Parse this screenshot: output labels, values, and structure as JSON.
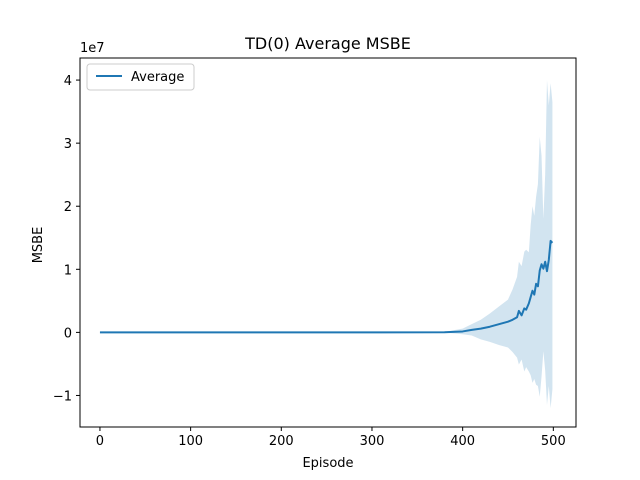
{
  "chart_data": {
    "type": "line",
    "title": "TD(0) Average MSBE",
    "xlabel": "Episode",
    "ylabel": "MSBE",
    "y_offset_text": "1e7",
    "xlim": [
      -22,
      525
    ],
    "ylim": [
      -15000000,
      43500000
    ],
    "x_ticks": [
      0,
      100,
      200,
      300,
      400,
      500
    ],
    "x_tick_labels": [
      "0",
      "100",
      "200",
      "300",
      "400",
      "500"
    ],
    "y_ticks": [
      -10000000,
      0,
      10000000,
      20000000,
      30000000,
      40000000
    ],
    "y_tick_labels": [
      "−1",
      "0",
      "1",
      "2",
      "3",
      "4"
    ],
    "grid": false,
    "legend": {
      "position": "upper-left",
      "entries": [
        "Average"
      ]
    },
    "colors": {
      "line": "#1f77b4",
      "band": "#1f77b4"
    },
    "series": [
      {
        "name": "Average",
        "x": [
          0,
          300,
          380,
          400,
          410,
          420,
          430,
          440,
          450,
          455,
          460,
          462,
          465,
          468,
          470,
          473,
          475,
          477,
          479,
          481,
          483,
          485,
          487,
          489,
          491,
          493,
          495,
          497,
          499
        ],
        "values": [
          0,
          0,
          20000,
          150000,
          400000,
          600000,
          900000,
          1300000,
          1700000,
          2000000,
          2400000,
          3400000,
          2700000,
          3800000,
          3600000,
          4600000,
          5600000,
          6600000,
          6000000,
          7700000,
          7300000,
          9800000,
          10800000,
          10100000,
          11200000,
          9700000,
          11500000,
          14500000,
          14200000
        ],
        "band_upper": [
          0,
          0,
          80000,
          600000,
          1300000,
          2000000,
          3000000,
          4100000,
          5200000,
          6800000,
          8800000,
          11200000,
          10500000,
          12800000,
          13100000,
          12700000,
          17000000,
          20000000,
          18500000,
          21500000,
          23500000,
          31000000,
          28000000,
          18000000,
          25000000,
          40000000,
          36000000,
          39500000,
          36500000
        ],
        "band_lower": [
          0,
          0,
          -40000,
          -300000,
          -500000,
          -1100000,
          -1500000,
          -2000000,
          -2400000,
          -3100000,
          -4000000,
          -5100000,
          -4300000,
          -6200000,
          -5500000,
          -6200000,
          -6800000,
          -8000000,
          -7400000,
          -8300000,
          -8500000,
          -10200000,
          -7000000,
          -3000000,
          -6000000,
          -11500000,
          -8500000,
          -12000000,
          -9000000
        ]
      }
    ]
  }
}
